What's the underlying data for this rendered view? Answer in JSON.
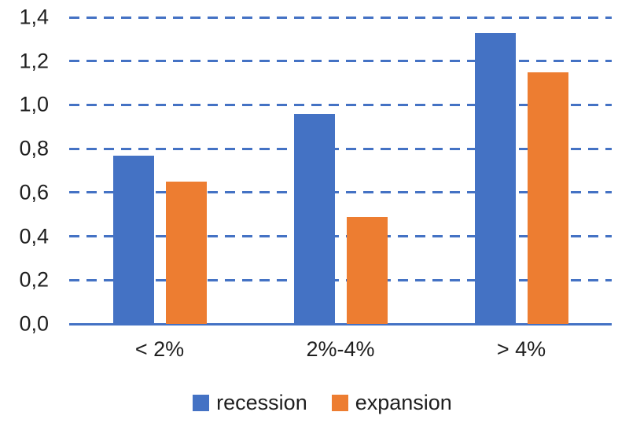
{
  "chart_data": {
    "type": "bar",
    "title": "",
    "xlabel": "",
    "ylabel": "",
    "categories": [
      "< 2%",
      "2%-4%",
      "> 4%"
    ],
    "series": [
      {
        "name": "recession",
        "color": "#4472C4",
        "values": [
          0.77,
          0.96,
          1.33
        ]
      },
      {
        "name": "expansion",
        "color": "#ED7D31",
        "values": [
          0.65,
          0.49,
          1.15
        ]
      }
    ],
    "ylim": [
      0,
      1.4
    ],
    "ytick_step": 0.2,
    "ytick_labels": [
      "0,0",
      "0,2",
      "0,4",
      "0,6",
      "0,8",
      "1,0",
      "1,2",
      "1,4"
    ],
    "decimal_separator": ",",
    "grid": "horizontal-dashed",
    "gridline_color": "#4472C4",
    "axis_line_color": "#4472C4",
    "legend_position": "bottom"
  }
}
